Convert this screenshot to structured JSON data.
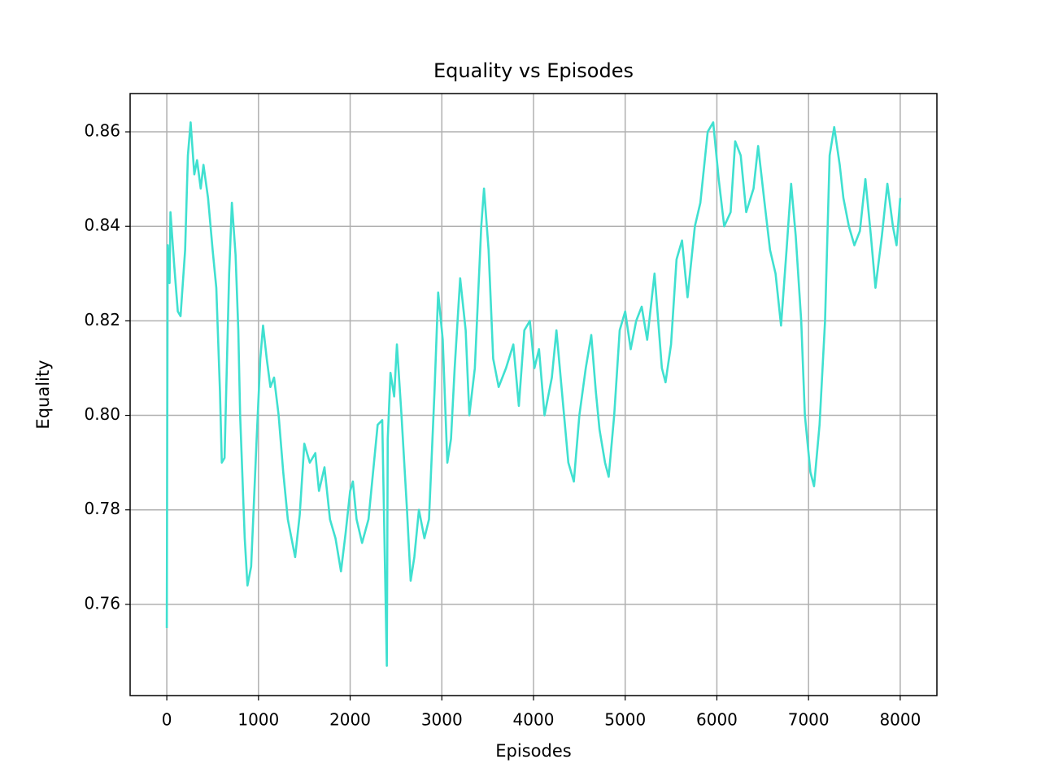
{
  "chart_data": {
    "type": "line",
    "title": "Equality vs Episodes",
    "x_label": "Episodes",
    "y_label": "Equality",
    "x": [
      0,
      10,
      30,
      40,
      80,
      120,
      150,
      200,
      230,
      260,
      300,
      330,
      370,
      400,
      450,
      500,
      540,
      580,
      600,
      630,
      680,
      710,
      750,
      780,
      800,
      850,
      880,
      920,
      980,
      1020,
      1050,
      1090,
      1130,
      1170,
      1220,
      1270,
      1320,
      1400,
      1450,
      1500,
      1560,
      1620,
      1660,
      1720,
      1780,
      1840,
      1900,
      1950,
      2000,
      2030,
      2070,
      2130,
      2200,
      2260,
      2300,
      2350,
      2400,
      2410,
      2440,
      2480,
      2510,
      2560,
      2620,
      2660,
      2700,
      2750,
      2810,
      2860,
      2920,
      2960,
      3010,
      3060,
      3100,
      3140,
      3200,
      3260,
      3300,
      3360,
      3430,
      3460,
      3510,
      3560,
      3620,
      3700,
      3780,
      3840,
      3900,
      3960,
      4010,
      4060,
      4120,
      4200,
      4250,
      4310,
      4380,
      4440,
      4500,
      4570,
      4630,
      4680,
      4720,
      4780,
      4820,
      4880,
      4940,
      5000,
      5060,
      5120,
      5180,
      5240,
      5320,
      5400,
      5440,
      5500,
      5560,
      5620,
      5680,
      5760,
      5820,
      5900,
      5960,
      6020,
      6080,
      6150,
      6200,
      6260,
      6320,
      6400,
      6450,
      6520,
      6580,
      6640,
      6700,
      6760,
      6810,
      6860,
      6920,
      6960,
      7020,
      7060,
      7120,
      7180,
      7230,
      7280,
      7340,
      7380,
      7440,
      7500,
      7560,
      7620,
      7680,
      7730,
      7800,
      7860,
      7920,
      7960,
      8000
    ],
    "series": [
      {
        "color": "#40e0d0",
        "values": [
          0.755,
          0.836,
          0.828,
          0.843,
          0.832,
          0.822,
          0.821,
          0.835,
          0.855,
          0.862,
          0.851,
          0.854,
          0.848,
          0.853,
          0.846,
          0.835,
          0.827,
          0.805,
          0.79,
          0.791,
          0.83,
          0.845,
          0.834,
          0.818,
          0.8,
          0.774,
          0.764,
          0.768,
          0.795,
          0.812,
          0.819,
          0.812,
          0.806,
          0.808,
          0.8,
          0.788,
          0.778,
          0.77,
          0.779,
          0.794,
          0.79,
          0.792,
          0.784,
          0.789,
          0.778,
          0.774,
          0.767,
          0.775,
          0.784,
          0.786,
          0.778,
          0.773,
          0.778,
          0.79,
          0.798,
          0.799,
          0.747,
          0.795,
          0.809,
          0.804,
          0.815,
          0.8,
          0.78,
          0.765,
          0.77,
          0.78,
          0.774,
          0.778,
          0.805,
          0.826,
          0.816,
          0.79,
          0.795,
          0.81,
          0.829,
          0.818,
          0.8,
          0.81,
          0.84,
          0.848,
          0.835,
          0.812,
          0.806,
          0.81,
          0.815,
          0.802,
          0.818,
          0.82,
          0.81,
          0.814,
          0.8,
          0.808,
          0.818,
          0.805,
          0.79,
          0.786,
          0.8,
          0.81,
          0.817,
          0.805,
          0.797,
          0.79,
          0.787,
          0.8,
          0.818,
          0.822,
          0.814,
          0.82,
          0.823,
          0.816,
          0.83,
          0.81,
          0.807,
          0.815,
          0.833,
          0.837,
          0.825,
          0.84,
          0.845,
          0.86,
          0.862,
          0.85,
          0.84,
          0.843,
          0.858,
          0.855,
          0.843,
          0.848,
          0.857,
          0.845,
          0.835,
          0.83,
          0.819,
          0.835,
          0.849,
          0.838,
          0.82,
          0.8,
          0.788,
          0.785,
          0.798,
          0.82,
          0.855,
          0.861,
          0.853,
          0.846,
          0.84,
          0.836,
          0.839,
          0.85,
          0.838,
          0.827,
          0.838,
          0.849,
          0.84,
          0.836,
          0.846
        ]
      }
    ],
    "xlim": [
      -400,
      8400
    ],
    "ylim": [
      0.7407,
      0.8681
    ],
    "xticks": [
      0,
      1000,
      2000,
      3000,
      4000,
      5000,
      6000,
      7000,
      8000
    ],
    "yticks": [
      {
        "value": 0.76,
        "label": "0.76"
      },
      {
        "value": 0.78,
        "label": "0.78"
      },
      {
        "value": 0.8,
        "label": "0.80"
      },
      {
        "value": 0.82,
        "label": "0.82"
      },
      {
        "value": 0.84,
        "label": "0.84"
      },
      {
        "value": 0.86,
        "label": "0.86"
      }
    ],
    "grid": true
  }
}
